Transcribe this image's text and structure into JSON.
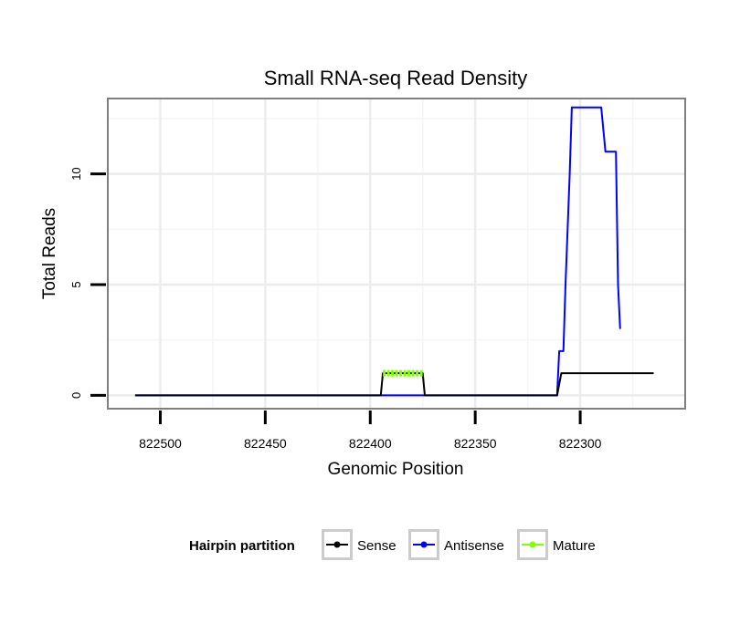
{
  "chart_data": {
    "type": "line",
    "title": "Small RNA-seq Read Density",
    "xlabel": "Genomic Position",
    "ylabel": "Total Reads",
    "x_reversed": true,
    "xlim": [
      822525,
      822250
    ],
    "ylim": [
      -0.6,
      13.4
    ],
    "x_ticks": [
      822500,
      822450,
      822400,
      822350,
      822300
    ],
    "x_tick_labels": [
      "822500",
      "822450",
      "822400",
      "822350",
      "822300"
    ],
    "y_ticks": [
      0,
      5,
      10
    ],
    "y_tick_labels": [
      "0",
      "5",
      "10"
    ],
    "grid": true,
    "legend": {
      "title": "Hairpin partition",
      "position": "bottom",
      "entries": [
        "Sense",
        "Antisense",
        "Mature"
      ]
    },
    "series": [
      {
        "name": "Sense",
        "color": "#000000",
        "x": [
          822512,
          822395,
          822394,
          822375,
          822374,
          822311,
          822309,
          822265
        ],
        "y": [
          0,
          0,
          1,
          1,
          0,
          0,
          1,
          1
        ]
      },
      {
        "name": "Antisense",
        "color": "#0000ff",
        "x": [
          822512,
          822311,
          822310,
          822308,
          822307,
          822305,
          822304,
          822302,
          822301,
          822291,
          822290,
          822288,
          822287,
          822285,
          822284,
          822283,
          822282,
          822281
        ],
        "y": [
          0,
          0,
          2,
          2,
          5,
          10,
          13,
          13,
          13,
          13,
          13,
          11,
          11,
          11,
          11,
          11,
          5,
          3
        ]
      },
      {
        "name": "Mature",
        "color": "#7fff00",
        "x": [
          822394,
          822375
        ],
        "y": [
          1,
          1
        ]
      }
    ]
  }
}
